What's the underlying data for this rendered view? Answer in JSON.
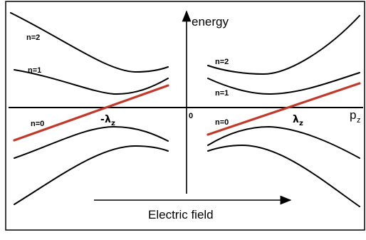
{
  "diagram": {
    "vertical_axis_label": "energy",
    "horizontal_axis_label": "p",
    "horizontal_axis_subscript": "z",
    "origin_label": "0",
    "field_arrow_label": "Electric field",
    "left_crossing_prefix": "-",
    "left_crossing_symbol": "λ",
    "left_crossing_subscript": "z",
    "right_crossing_symbol": "λ",
    "right_crossing_subscript": "z",
    "left_levels": {
      "n2": "n=2",
      "n1": "n=1",
      "n0": "n=0"
    },
    "right_levels": {
      "n2": "n=2",
      "n1": "n=1",
      "n0": "n=0"
    }
  },
  "colors": {
    "frame": "#000000",
    "curves": "#000000",
    "zero_mode_line": "#c0392b"
  }
}
